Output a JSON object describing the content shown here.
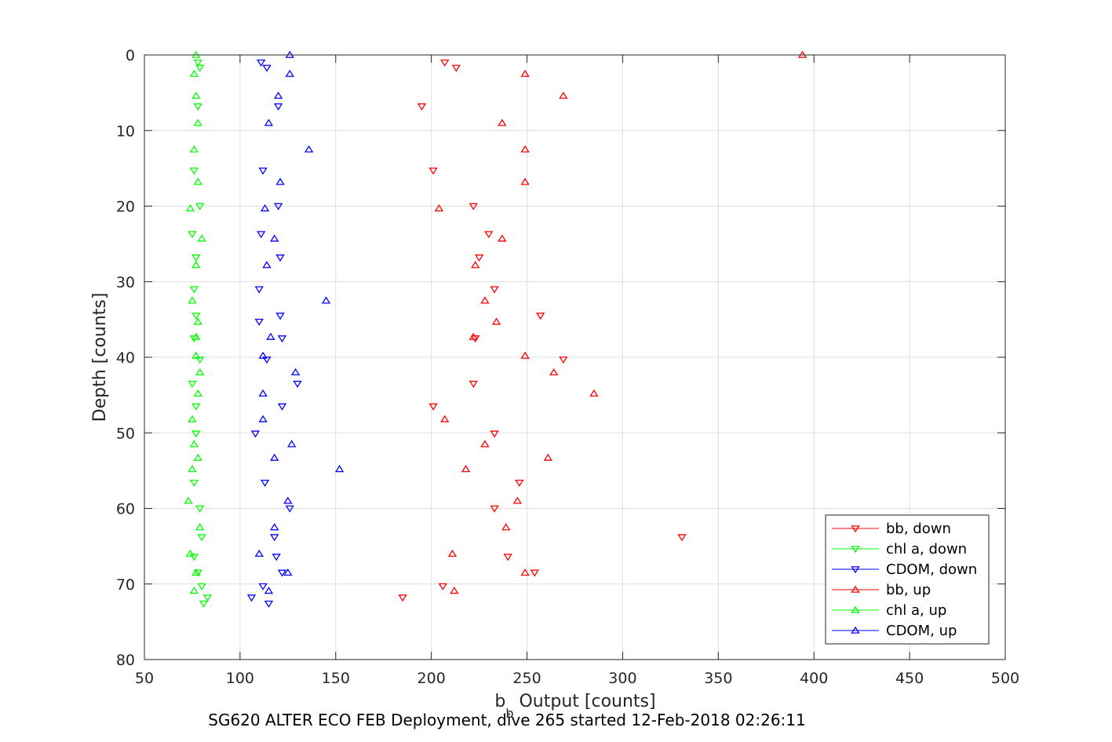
{
  "chart_data": {
    "type": "scatter",
    "title": "",
    "xlabel_main": "b",
    "xlabel_sub": "b",
    "xlabel_rest": " Output [counts]",
    "ylabel": "Depth [counts]",
    "caption": "SG620 ALTER ECO FEB Deployment, dive 265 started 12-Feb-2018 02:26:11",
    "xlim": [
      50,
      500
    ],
    "ylim": [
      0,
      80
    ],
    "y_reversed": true,
    "grid": true,
    "legend_position": "bottom-right",
    "xticks": [
      "50",
      "100",
      "150",
      "200",
      "250",
      "300",
      "350",
      "400",
      "450",
      "500"
    ],
    "yticks": [
      "0",
      "10",
      "20",
      "30",
      "40",
      "50",
      "60",
      "70",
      "80"
    ],
    "colors": {
      "red": "#ff0000",
      "green": "#00ff00",
      "blue": "#0000ff"
    },
    "series": [
      {
        "name": "bb, down",
        "color": "#ff0000",
        "marker": "triangle-down",
        "points": [
          [
            207,
            1
          ],
          [
            213,
            1.7
          ],
          [
            195,
            6.8
          ],
          [
            201,
            15.3
          ],
          [
            222,
            20
          ],
          [
            230,
            23.7
          ],
          [
            225,
            26.8
          ],
          [
            233,
            31
          ],
          [
            257,
            34.5
          ],
          [
            223,
            37.5
          ],
          [
            269,
            40.3
          ],
          [
            222,
            43.5
          ],
          [
            201,
            46.5
          ],
          [
            233,
            50.1
          ],
          [
            246,
            56.6
          ],
          [
            233,
            60
          ],
          [
            331,
            63.8
          ],
          [
            240,
            66.4
          ],
          [
            254,
            68.5
          ],
          [
            206,
            70.3
          ],
          [
            185,
            71.8
          ]
        ]
      },
      {
        "name": "chl a, down",
        "color": "#00ff00",
        "marker": "triangle-down",
        "points": [
          [
            78,
            1
          ],
          [
            79,
            1.7
          ],
          [
            78,
            6.8
          ],
          [
            76,
            15.3
          ],
          [
            79,
            20
          ],
          [
            75,
            23.7
          ],
          [
            77,
            26.8
          ],
          [
            76,
            31
          ],
          [
            77,
            34.5
          ],
          [
            76,
            37.5
          ],
          [
            79,
            40.3
          ],
          [
            75,
            43.5
          ],
          [
            77,
            46.5
          ],
          [
            77,
            50.1
          ],
          [
            76,
            56.6
          ],
          [
            79,
            60
          ],
          [
            80,
            63.8
          ],
          [
            76,
            66.4
          ],
          [
            78,
            68.5
          ],
          [
            80,
            70.3
          ],
          [
            83,
            71.8
          ],
          [
            81,
            72.6
          ]
        ]
      },
      {
        "name": "CDOM, down",
        "color": "#0000ff",
        "marker": "triangle-down",
        "points": [
          [
            111,
            1
          ],
          [
            114,
            1.7
          ],
          [
            120,
            6.8
          ],
          [
            112,
            15.3
          ],
          [
            120,
            20
          ],
          [
            111,
            23.7
          ],
          [
            121,
            26.8
          ],
          [
            110,
            31
          ],
          [
            121,
            34.5
          ],
          [
            110,
            35.3
          ],
          [
            122,
            37.5
          ],
          [
            114,
            40.3
          ],
          [
            130,
            43.5
          ],
          [
            122,
            46.5
          ],
          [
            108,
            50.1
          ],
          [
            113,
            56.6
          ],
          [
            126,
            60
          ],
          [
            118,
            63.8
          ],
          [
            119,
            66.4
          ],
          [
            122,
            68.5
          ],
          [
            112,
            70.3
          ],
          [
            106,
            71.8
          ],
          [
            115,
            72.6
          ]
        ]
      },
      {
        "name": "bb, up",
        "color": "#ff0000",
        "marker": "triangle-up",
        "points": [
          [
            394,
            0
          ],
          [
            249,
            2.5
          ],
          [
            269,
            5.4
          ],
          [
            237,
            9
          ],
          [
            249,
            12.5
          ],
          [
            249,
            16.8
          ],
          [
            204,
            20.3
          ],
          [
            237,
            24.3
          ],
          [
            223,
            27.8
          ],
          [
            228,
            32.5
          ],
          [
            234,
            35.3
          ],
          [
            222,
            37.3
          ],
          [
            249,
            39.8
          ],
          [
            264,
            42
          ],
          [
            285,
            44.8
          ],
          [
            207,
            48.2
          ],
          [
            228,
            51.5
          ],
          [
            261,
            53.3
          ],
          [
            218,
            54.8
          ],
          [
            245,
            59
          ],
          [
            239,
            62.5
          ],
          [
            211,
            66
          ],
          [
            249,
            68.5
          ],
          [
            212,
            70.9
          ]
        ]
      },
      {
        "name": "chl a, up",
        "color": "#00ff00",
        "marker": "triangle-up",
        "points": [
          [
            77,
            0
          ],
          [
            76,
            2.5
          ],
          [
            77,
            5.4
          ],
          [
            78,
            9
          ],
          [
            76,
            12.5
          ],
          [
            78,
            16.8
          ],
          [
            74,
            20.3
          ],
          [
            80,
            24.3
          ],
          [
            77,
            27.8
          ],
          [
            75,
            32.5
          ],
          [
            78,
            35.3
          ],
          [
            77,
            37.3
          ],
          [
            77,
            39.8
          ],
          [
            79,
            42
          ],
          [
            78,
            44.8
          ],
          [
            75,
            48.2
          ],
          [
            76,
            51.5
          ],
          [
            78,
            53.3
          ],
          [
            75,
            54.8
          ],
          [
            73,
            59
          ],
          [
            79,
            62.5
          ],
          [
            74,
            66
          ],
          [
            77,
            68.5
          ],
          [
            76,
            70.9
          ]
        ]
      },
      {
        "name": "CDOM, up",
        "color": "#0000ff",
        "marker": "triangle-up",
        "points": [
          [
            126,
            0
          ],
          [
            126,
            2.5
          ],
          [
            120,
            5.4
          ],
          [
            115,
            9
          ],
          [
            136,
            12.5
          ],
          [
            121,
            16.8
          ],
          [
            113,
            20.3
          ],
          [
            118,
            24.3
          ],
          [
            114,
            27.8
          ],
          [
            145,
            32.5
          ],
          [
            116,
            37.3
          ],
          [
            112,
            39.8
          ],
          [
            129,
            42
          ],
          [
            112,
            44.8
          ],
          [
            112,
            48.2
          ],
          [
            127,
            51.5
          ],
          [
            118,
            53.3
          ],
          [
            152,
            54.8
          ],
          [
            125,
            59
          ],
          [
            118,
            62.5
          ],
          [
            110,
            66
          ],
          [
            125,
            68.5
          ],
          [
            115,
            70.9
          ]
        ]
      }
    ]
  }
}
